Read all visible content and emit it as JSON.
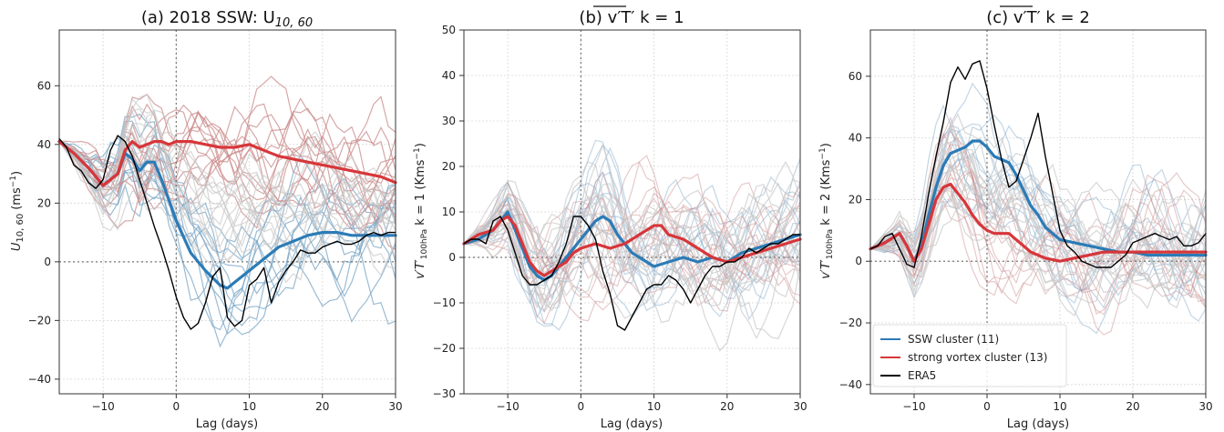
{
  "chart_data": [
    {
      "type": "line",
      "title": "(a) 2018 SSW: U",
      "title_sub": "10, 60",
      "xlabel": "Lag (days)",
      "ylabel": "U",
      "ylabel_sub": "10, 60",
      "ylabel_unit": "(ms",
      "ylabel_unit_sup": "−1",
      "ylabel_unit_close": ")",
      "xlim": [
        -16,
        30
      ],
      "ylim": [
        -45,
        79
      ],
      "xticks": [
        -10,
        0,
        10,
        20,
        30
      ],
      "yticks": [
        -40,
        -20,
        0,
        20,
        40,
        60
      ],
      "grid": true,
      "colors": {
        "ssw": "#2c7bb6",
        "strong": "#d7363a",
        "era5": "#000000",
        "member_blue": "#7aa5c6",
        "member_red": "#c98a8a",
        "member_grey": "#c8c8c8"
      },
      "series": [
        {
          "key": "ssw",
          "x": [
            -16,
            -14,
            -12,
            -10,
            -8,
            -7,
            -6,
            -5,
            -4,
            -3,
            -2,
            -1,
            0,
            2,
            4,
            6,
            7,
            8,
            10,
            12,
            14,
            16,
            18,
            20,
            22,
            24,
            26,
            28,
            30
          ],
          "y": [
            41,
            37,
            32,
            26,
            30,
            37,
            35,
            31,
            34,
            34,
            28,
            21,
            14,
            3,
            -3,
            -8,
            -9,
            -7,
            -3,
            1,
            5,
            7,
            9,
            10,
            10,
            9,
            9,
            9,
            9
          ]
        },
        {
          "key": "strong",
          "x": [
            -16,
            -14,
            -12,
            -10,
            -8,
            -7,
            -6,
            -5,
            -4,
            -3,
            -2,
            -1,
            0,
            2,
            4,
            6,
            8,
            10,
            12,
            14,
            16,
            18,
            20,
            22,
            24,
            26,
            28,
            30
          ],
          "y": [
            41,
            37,
            32,
            26,
            30,
            38,
            41,
            39,
            40,
            41,
            41,
            40,
            41,
            41,
            40,
            39,
            39,
            40,
            38,
            36,
            35,
            34,
            33,
            32,
            31,
            30,
            29,
            27
          ]
        },
        {
          "key": "era5",
          "x": [
            -16,
            -15,
            -14,
            -13,
            -12,
            -11,
            -10,
            -9,
            -8,
            -7,
            -6,
            -5,
            -4,
            -3,
            -2,
            -1,
            0,
            1,
            2,
            3,
            4,
            5,
            6,
            7,
            8,
            9,
            10,
            11,
            12,
            13,
            14,
            15,
            16,
            17,
            18,
            19,
            20,
            21,
            22,
            23,
            24,
            25,
            26,
            27,
            28,
            29,
            30
          ],
          "y": [
            42,
            39,
            33,
            31,
            27,
            25,
            28,
            38,
            43,
            41,
            36,
            28,
            20,
            12,
            5,
            -3,
            -12,
            -19,
            -23,
            -21,
            -14,
            -5,
            -2,
            -19,
            -22,
            -20,
            -8,
            -6,
            -2,
            -14,
            -7,
            -3,
            0,
            4,
            3,
            3,
            5,
            6,
            7,
            6,
            6,
            7,
            9,
            10,
            9,
            10,
            10
          ]
        }
      ]
    },
    {
      "type": "line",
      "title": "(b) v′T′ k = 1",
      "xlabel": "Lag (days)",
      "ylabel": "v′T′",
      "ylabel_sub": "100hPa",
      "ylabel_rest": " k = 1 (Kms",
      "ylabel_unit_sup": "−1",
      "ylabel_unit_close": ")",
      "xlim": [
        -16,
        30
      ],
      "ylim": [
        -30,
        50
      ],
      "xticks": [
        -10,
        0,
        10,
        20,
        30
      ],
      "yticks": [
        -30,
        -20,
        -10,
        0,
        10,
        20,
        30,
        40,
        50
      ],
      "grid": true,
      "series": [
        {
          "key": "ssw",
          "x": [
            -16,
            -14,
            -12,
            -11,
            -10,
            -9,
            -8,
            -7,
            -6,
            -5,
            -4,
            -3,
            -2,
            -1,
            0,
            1,
            2,
            3,
            4,
            5,
            6,
            7,
            8,
            10,
            12,
            14,
            16,
            18,
            20,
            22,
            24,
            26,
            28,
            30
          ],
          "y": [
            3,
            4,
            6,
            8,
            10,
            6,
            2,
            -2,
            -4,
            -5,
            -4,
            -2,
            0,
            2,
            4,
            6,
            8,
            9,
            8,
            5,
            3,
            1,
            0,
            -2,
            -1,
            0,
            -1,
            0,
            -1,
            1,
            2,
            3,
            4,
            5
          ]
        },
        {
          "key": "strong",
          "x": [
            -16,
            -14,
            -12,
            -11,
            -10,
            -9,
            -8,
            -7,
            -6,
            -5,
            -4,
            -3,
            -2,
            -1,
            0,
            2,
            4,
            6,
            8,
            10,
            11,
            12,
            14,
            16,
            18,
            20,
            22,
            24,
            26,
            28,
            30
          ],
          "y": [
            3,
            5,
            6,
            8,
            9,
            7,
            3,
            -1,
            -3,
            -4,
            -3,
            -2,
            -1,
            1,
            2,
            3,
            2,
            3,
            5,
            7,
            7,
            5,
            4,
            2,
            0,
            -1,
            0,
            1,
            2,
            3,
            4
          ]
        },
        {
          "key": "era5",
          "x": [
            -16,
            -15,
            -14,
            -13,
            -12,
            -11,
            -10,
            -9,
            -8,
            -7,
            -6,
            -5,
            -4,
            -3,
            -2,
            -1,
            0,
            1,
            2,
            3,
            4,
            5,
            6,
            7,
            8,
            9,
            10,
            11,
            12,
            13,
            14,
            15,
            16,
            17,
            18,
            19,
            20,
            21,
            22,
            23,
            24,
            25,
            26,
            27,
            28,
            29,
            30
          ],
          "y": [
            3,
            4,
            4,
            3,
            8,
            9,
            6,
            1,
            -4,
            -6,
            -6,
            -5,
            -4,
            -1,
            3,
            9,
            9,
            7,
            4,
            -3,
            -8,
            -15,
            -16,
            -13,
            -10,
            -7,
            -6,
            -6,
            -4,
            -5,
            -7,
            -10,
            -7,
            -4,
            -2,
            -2,
            -1,
            -1,
            0,
            2,
            1,
            2,
            3,
            3,
            4,
            5,
            5
          ]
        }
      ]
    },
    {
      "type": "line",
      "title": "(c) v′T′ k = 2",
      "xlabel": "Lag (days)",
      "ylabel": "v′T′",
      "ylabel_sub": "100hPa",
      "ylabel_rest": " k = 2 (Kms",
      "ylabel_unit_sup": "−1",
      "ylabel_unit_close": ")",
      "xlim": [
        -16,
        30
      ],
      "ylim": [
        -43,
        75
      ],
      "xticks": [
        -10,
        0,
        10,
        20,
        30
      ],
      "yticks": [
        -40,
        -20,
        0,
        20,
        40,
        60
      ],
      "grid": true,
      "legend": {
        "placement": "lower-left",
        "entries": [
          {
            "key": "ssw",
            "label": "SSW cluster (11)"
          },
          {
            "key": "strong",
            "label": "strong vortex cluster (13)"
          },
          {
            "key": "era5",
            "label": "ERA5"
          }
        ]
      },
      "series": [
        {
          "key": "ssw",
          "x": [
            -16,
            -14,
            -12,
            -11,
            -10,
            -9,
            -8,
            -7,
            -6,
            -5,
            -4,
            -3,
            -2,
            -1,
            0,
            1,
            2,
            3,
            4,
            5,
            6,
            7,
            8,
            10,
            12,
            14,
            16,
            18,
            20,
            22,
            24,
            26,
            28,
            30
          ],
          "y": [
            4,
            6,
            9,
            5,
            0,
            5,
            15,
            24,
            31,
            35,
            36,
            37,
            39,
            39,
            37,
            34,
            33,
            32,
            28,
            23,
            18,
            15,
            11,
            7,
            6,
            5,
            4,
            3,
            3,
            2,
            2,
            2,
            2,
            2
          ]
        },
        {
          "key": "strong",
          "x": [
            -16,
            -14,
            -12,
            -11,
            -10,
            -9,
            -8,
            -7,
            -6,
            -5,
            -4,
            -3,
            -2,
            -1,
            0,
            1,
            2,
            3,
            4,
            5,
            6,
            7,
            8,
            10,
            12,
            14,
            16,
            18,
            20,
            22,
            24,
            26,
            28,
            30
          ],
          "y": [
            4,
            6,
            9,
            5,
            0,
            4,
            12,
            20,
            24,
            25,
            22,
            19,
            15,
            12,
            10,
            9,
            9,
            9,
            7,
            5,
            3,
            2,
            1,
            0,
            1,
            2,
            3,
            3,
            3,
            3,
            3,
            3,
            3,
            3
          ]
        },
        {
          "key": "era5",
          "x": [
            -16,
            -15,
            -14,
            -13,
            -12,
            -11,
            -10,
            -9,
            -8,
            -7,
            -6,
            -5,
            -4,
            -3,
            -2,
            -1,
            0,
            1,
            2,
            3,
            4,
            5,
            6,
            7,
            8,
            9,
            10,
            11,
            12,
            13,
            14,
            15,
            16,
            17,
            18,
            19,
            20,
            21,
            22,
            23,
            24,
            25,
            26,
            27,
            28,
            29,
            30
          ],
          "y": [
            4,
            5,
            8,
            9,
            4,
            -1,
            -2,
            8,
            22,
            34,
            45,
            58,
            63,
            59,
            64,
            65,
            56,
            44,
            33,
            24,
            26,
            33,
            40,
            48,
            34,
            22,
            10,
            5,
            3,
            0,
            -1,
            -2,
            -2,
            -2,
            0,
            2,
            6,
            7,
            8,
            9,
            8,
            7,
            8,
            5,
            5,
            6,
            9
          ]
        }
      ]
    }
  ]
}
